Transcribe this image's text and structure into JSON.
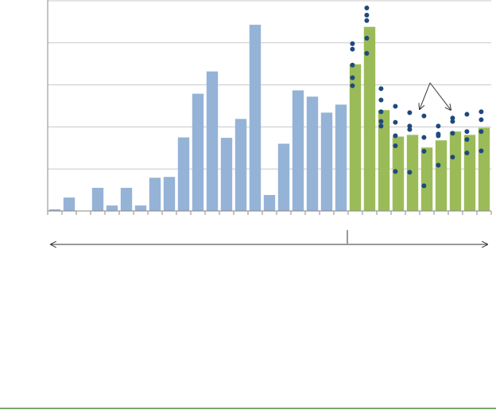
{
  "chart_data": {
    "type": "bar",
    "categories": [
      null,
      null,
      null,
      null,
      null,
      null,
      null,
      null,
      null,
      null,
      null,
      null,
      null,
      null,
      null,
      null,
      null,
      null,
      null,
      null,
      null,
      null,
      null,
      null,
      null,
      null,
      null,
      null,
      null,
      null,
      null
    ],
    "series": [
      {
        "color": "#95b3d7",
        "values": [
          0.04,
          0.32,
          0,
          0.55,
          0.13,
          0.55,
          0.13,
          0.79,
          0.81,
          1.75,
          2.79,
          3.32,
          1.74,
          2.19,
          4.43,
          0.38,
          1.6,
          2.87,
          2.72,
          2.34,
          2.53,
          null,
          null,
          null,
          null,
          null,
          null,
          null,
          null,
          null,
          null
        ]
      },
      {
        "color": "#9bbb59",
        "values": [
          null,
          null,
          null,
          null,
          null,
          null,
          null,
          null,
          null,
          null,
          null,
          null,
          null,
          null,
          null,
          null,
          null,
          null,
          null,
          null,
          null,
          3.49,
          4.38,
          2.4,
          1.77,
          1.81,
          1.51,
          1.68,
          1.89,
          1.81,
          1.98
        ]
      }
    ],
    "dots": {
      "color": "#1f497d",
      "groups": [
        {
          "index": 21,
          "values": [
            3.98,
            3.85,
            3.47,
            3.17,
            2.98
          ]
        },
        {
          "index": 22,
          "values": [
            4.83,
            4.66,
            4.53,
            4.11,
            3.75
          ]
        },
        {
          "index": 23,
          "values": [
            2.91,
            2.64,
            2.36,
            2.13,
            2.02
          ]
        },
        {
          "index": 24,
          "values": [
            2.49,
            2.11,
            1.79,
            1.55,
            0.94
          ]
        },
        {
          "index": 25,
          "values": [
            2.34,
            2.02,
            1.94,
            0.92
          ]
        },
        {
          "index": 26,
          "values": [
            2.26,
            1.75,
            1.42,
            0.6
          ]
        },
        {
          "index": 27,
          "values": [
            2.02,
            1.83,
            1.79,
            1.09
          ]
        },
        {
          "index": 28,
          "values": [
            2.21,
            2.13,
            1.85,
            1.28
          ]
        },
        {
          "index": 29,
          "values": [
            2.3,
            1.89,
            1.7,
            1.38
          ]
        },
        {
          "index": 30,
          "values": [
            2.36,
            2.17,
            1.89,
            1.43
          ]
        }
      ]
    },
    "ylim": [
      0,
      5
    ],
    "yticks": [
      0,
      1,
      2,
      3,
      4,
      5
    ],
    "grid": true
  }
}
